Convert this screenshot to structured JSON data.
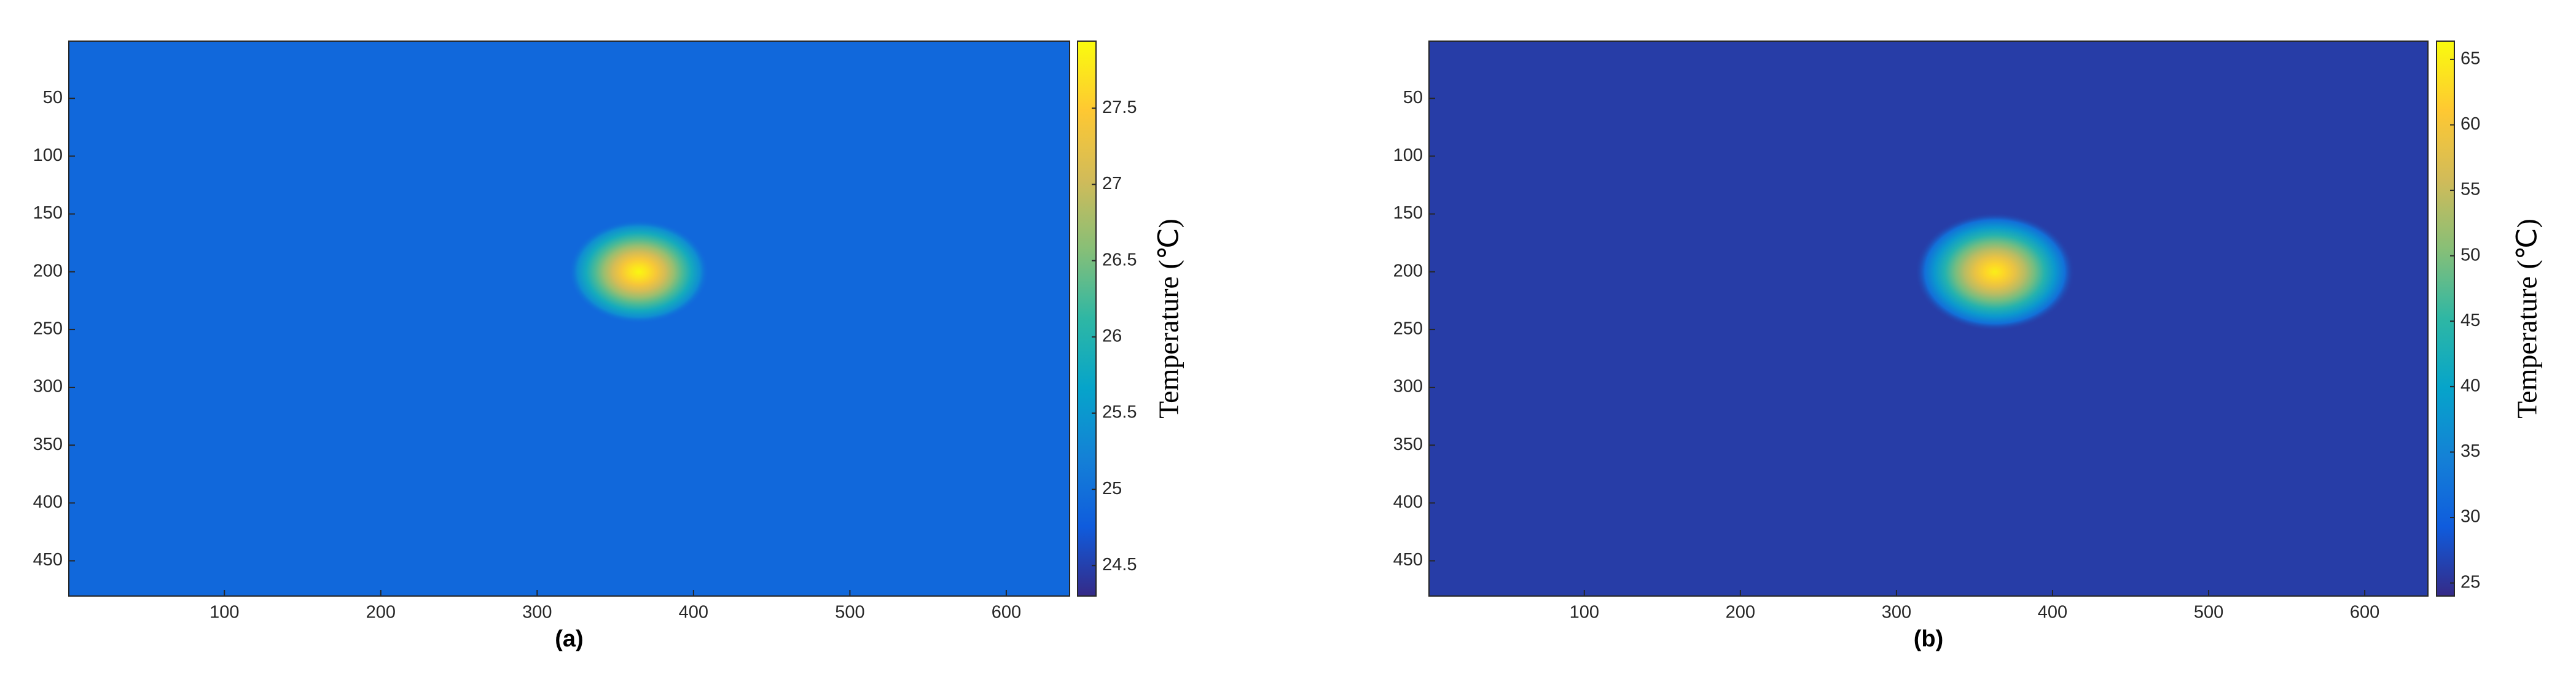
{
  "chart_data": [
    {
      "type": "heatmap",
      "label": "(a)",
      "colorbar_label": "Temperature (℃)",
      "xlim": [
        0.5,
        640.5
      ],
      "ylim": [
        0.5,
        480.5
      ],
      "xticks": [
        100,
        200,
        300,
        400,
        500,
        600
      ],
      "yticks": [
        50,
        100,
        150,
        200,
        250,
        300,
        350,
        400,
        450
      ],
      "clim": [
        24.3,
        27.94
      ],
      "cticks": [
        24.5,
        25,
        25.5,
        26,
        26.5,
        27,
        27.5
      ],
      "background_value": 24.9,
      "peak": {
        "x": 365,
        "y": 200,
        "value": 27.9,
        "radius": 28
      }
    },
    {
      "type": "heatmap",
      "label": "(b)",
      "colorbar_label": "Temperature (℃)",
      "xlim": [
        0.5,
        640.5
      ],
      "ylim": [
        0.5,
        480.5
      ],
      "xticks": [
        100,
        200,
        300,
        400,
        500,
        600
      ],
      "yticks": [
        50,
        100,
        150,
        200,
        250,
        300,
        350,
        400,
        450
      ],
      "clim": [
        24,
        66.4
      ],
      "cticks": [
        25,
        30,
        35,
        40,
        45,
        50,
        55,
        60,
        65
      ],
      "background_value": 26,
      "peak": {
        "x": 363,
        "y": 200,
        "value": 65,
        "radius": 32
      }
    }
  ]
}
